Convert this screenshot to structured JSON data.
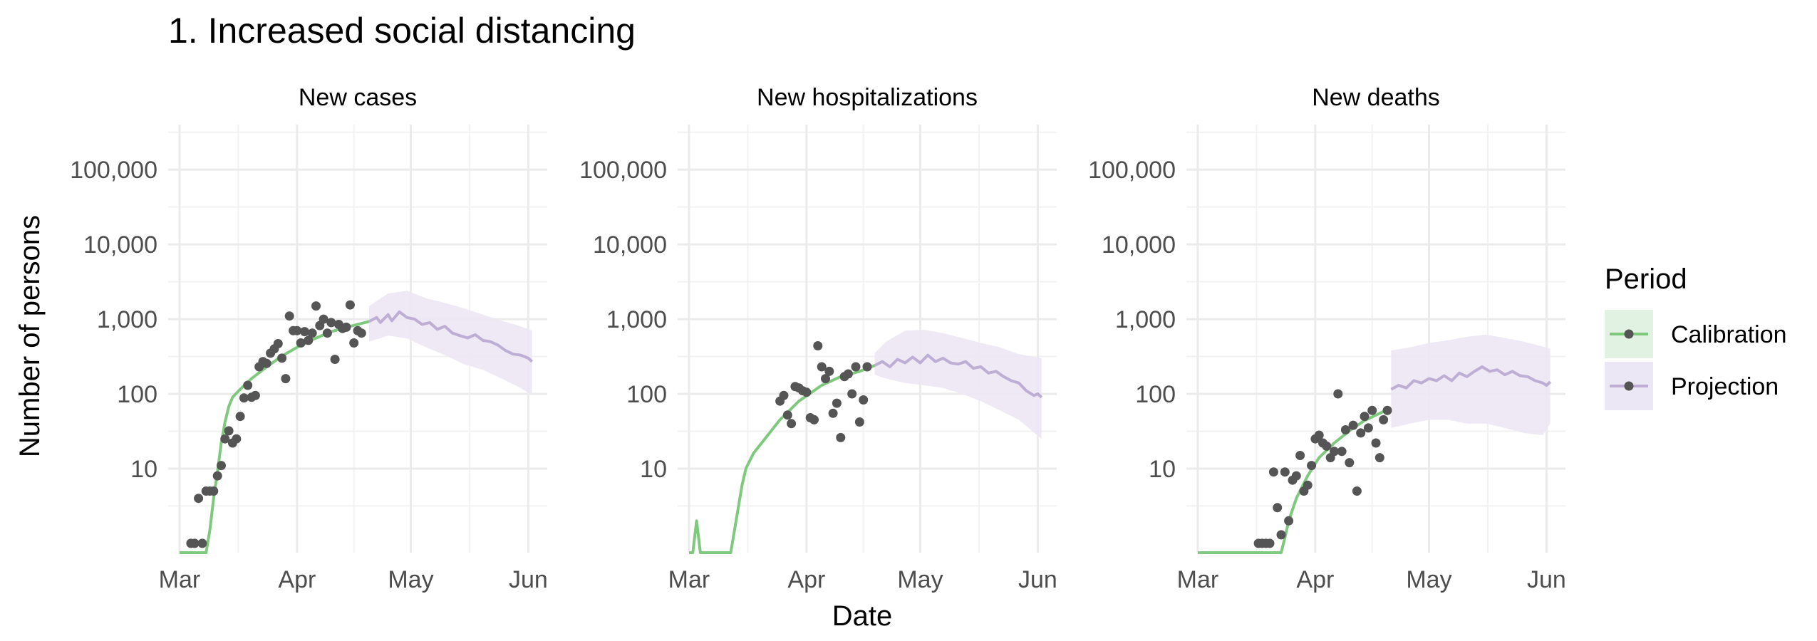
{
  "chart_data": {
    "type": "line",
    "title": "1. Increased social distancing",
    "xlabel": "Date",
    "ylabel": "Number of persons",
    "y_scale": "log",
    "y_ticks": [
      10,
      100,
      1000,
      10000,
      100000
    ],
    "y_tick_labels": [
      "10",
      "100",
      "1,000",
      "10,000",
      "100,000"
    ],
    "x_ticks": [
      "2020-03-01",
      "2020-04-01",
      "2020-05-01",
      "2020-06-01"
    ],
    "x_tick_labels": [
      "Mar",
      "Apr",
      "May",
      "Jun"
    ],
    "xlim": [
      "2020-02-27",
      "2020-06-06"
    ],
    "ylim": [
      0.75,
      400000
    ],
    "grid": true,
    "legend": {
      "title": "Period",
      "position": "right",
      "entries": [
        {
          "label": "Calibration",
          "color": "#7fc97f",
          "fill": "#e2f2e2"
        },
        {
          "label": "Projection",
          "color": "#beaed4",
          "fill": "#ece7f4"
        }
      ]
    },
    "colors": {
      "calibration": "#7fc97f",
      "projection": "#beaed4",
      "observed": "#555555"
    },
    "panels": [
      {
        "title": "New cases",
        "observed": [
          [
            "2020-03-04",
            1
          ],
          [
            "2020-03-05",
            1
          ],
          [
            "2020-03-06",
            4
          ],
          [
            "2020-03-07",
            1
          ],
          [
            "2020-03-08",
            5
          ],
          [
            "2020-03-09",
            5
          ],
          [
            "2020-03-10",
            5
          ],
          [
            "2020-03-11",
            8
          ],
          [
            "2020-03-12",
            11
          ],
          [
            "2020-03-13",
            25
          ],
          [
            "2020-03-14",
            32
          ],
          [
            "2020-03-15",
            22
          ],
          [
            "2020-03-16",
            25
          ],
          [
            "2020-03-17",
            50
          ],
          [
            "2020-03-18",
            88
          ],
          [
            "2020-03-19",
            130
          ],
          [
            "2020-03-20",
            90
          ],
          [
            "2020-03-21",
            95
          ],
          [
            "2020-03-22",
            230
          ],
          [
            "2020-03-23",
            270
          ],
          [
            "2020-03-24",
            255
          ],
          [
            "2020-03-25",
            350
          ],
          [
            "2020-03-26",
            400
          ],
          [
            "2020-03-27",
            470
          ],
          [
            "2020-03-28",
            300
          ],
          [
            "2020-03-29",
            160
          ],
          [
            "2020-03-30",
            1100
          ],
          [
            "2020-03-31",
            700
          ],
          [
            "2020-04-01",
            700
          ],
          [
            "2020-04-02",
            480
          ],
          [
            "2020-04-03",
            680
          ],
          [
            "2020-04-04",
            520
          ],
          [
            "2020-04-05",
            650
          ],
          [
            "2020-04-06",
            1500
          ],
          [
            "2020-04-07",
            820
          ],
          [
            "2020-04-08",
            1000
          ],
          [
            "2020-04-09",
            650
          ],
          [
            "2020-04-10",
            900
          ],
          [
            "2020-04-11",
            290
          ],
          [
            "2020-04-12",
            850
          ],
          [
            "2020-04-13",
            750
          ],
          [
            "2020-04-14",
            780
          ],
          [
            "2020-04-15",
            1550
          ],
          [
            "2020-04-16",
            480
          ],
          [
            "2020-04-17",
            700
          ],
          [
            "2020-04-18",
            650
          ]
        ],
        "calibration_line": [
          [
            "2020-03-01",
            0.5
          ],
          [
            "2020-03-08",
            0.5
          ],
          [
            "2020-03-09",
            1.5
          ],
          [
            "2020-03-10",
            4
          ],
          [
            "2020-03-11",
            9
          ],
          [
            "2020-03-12",
            22
          ],
          [
            "2020-03-13",
            42
          ],
          [
            "2020-03-14",
            68
          ],
          [
            "2020-03-15",
            90
          ],
          [
            "2020-03-17",
            115
          ],
          [
            "2020-03-20",
            160
          ],
          [
            "2020-03-24",
            230
          ],
          [
            "2020-03-28",
            320
          ],
          [
            "2020-04-01",
            420
          ],
          [
            "2020-04-05",
            530
          ],
          [
            "2020-04-10",
            680
          ],
          [
            "2020-04-15",
            800
          ],
          [
            "2020-04-20",
            930
          ]
        ],
        "projection_line": [
          [
            "2020-04-20",
            930
          ],
          [
            "2020-04-22",
            1050
          ],
          [
            "2020-04-23",
            900
          ],
          [
            "2020-04-25",
            1150
          ],
          [
            "2020-04-26",
            950
          ],
          [
            "2020-04-28",
            1250
          ],
          [
            "2020-04-30",
            1050
          ],
          [
            "2020-05-02",
            1000
          ],
          [
            "2020-05-04",
            850
          ],
          [
            "2020-05-06",
            900
          ],
          [
            "2020-05-08",
            730
          ],
          [
            "2020-05-10",
            800
          ],
          [
            "2020-05-12",
            650
          ],
          [
            "2020-05-14",
            600
          ],
          [
            "2020-05-16",
            560
          ],
          [
            "2020-05-18",
            620
          ],
          [
            "2020-05-20",
            520
          ],
          [
            "2020-05-22",
            500
          ],
          [
            "2020-05-24",
            450
          ],
          [
            "2020-05-26",
            380
          ],
          [
            "2020-05-28",
            340
          ],
          [
            "2020-05-30",
            330
          ],
          [
            "2020-06-01",
            300
          ],
          [
            "2020-06-02",
            270
          ]
        ],
        "projection_band": [
          [
            "2020-04-20",
            500,
            1500
          ],
          [
            "2020-04-25",
            600,
            2200
          ],
          [
            "2020-04-30",
            550,
            2400
          ],
          [
            "2020-05-05",
            420,
            1900
          ],
          [
            "2020-05-10",
            330,
            1650
          ],
          [
            "2020-05-15",
            250,
            1400
          ],
          [
            "2020-05-20",
            210,
            1150
          ],
          [
            "2020-05-25",
            160,
            950
          ],
          [
            "2020-05-30",
            120,
            800
          ],
          [
            "2020-06-02",
            95,
            700
          ]
        ]
      },
      {
        "title": "New hospitalizations",
        "observed": [
          [
            "2020-03-25",
            80
          ],
          [
            "2020-03-26",
            95
          ],
          [
            "2020-03-27",
            52
          ],
          [
            "2020-03-28",
            40
          ],
          [
            "2020-03-29",
            125
          ],
          [
            "2020-03-30",
            120
          ],
          [
            "2020-03-31",
            110
          ],
          [
            "2020-04-01",
            105
          ],
          [
            "2020-04-02",
            48
          ],
          [
            "2020-04-03",
            45
          ],
          [
            "2020-04-04",
            440
          ],
          [
            "2020-04-05",
            230
          ],
          [
            "2020-04-06",
            160
          ],
          [
            "2020-04-07",
            200
          ],
          [
            "2020-04-08",
            55
          ],
          [
            "2020-04-09",
            75
          ],
          [
            "2020-04-10",
            26
          ],
          [
            "2020-04-11",
            170
          ],
          [
            "2020-04-12",
            185
          ],
          [
            "2020-04-13",
            100
          ],
          [
            "2020-04-14",
            230
          ],
          [
            "2020-04-15",
            42
          ],
          [
            "2020-04-16",
            83
          ],
          [
            "2020-04-17",
            230
          ]
        ],
        "calibration_line": [
          [
            "2020-03-01",
            0.5
          ],
          [
            "2020-03-02",
            0.5
          ],
          [
            "2020-03-03",
            2
          ],
          [
            "2020-03-04",
            0.5
          ],
          [
            "2020-03-12",
            0.5
          ],
          [
            "2020-03-13",
            1.5
          ],
          [
            "2020-03-14",
            3
          ],
          [
            "2020-03-15",
            6
          ],
          [
            "2020-03-16",
            10
          ],
          [
            "2020-03-18",
            16
          ],
          [
            "2020-03-21",
            25
          ],
          [
            "2020-03-25",
            45
          ],
          [
            "2020-03-30",
            80
          ],
          [
            "2020-04-05",
            130
          ],
          [
            "2020-04-10",
            170
          ],
          [
            "2020-04-15",
            200
          ],
          [
            "2020-04-19",
            240
          ]
        ],
        "projection_line": [
          [
            "2020-04-19",
            240
          ],
          [
            "2020-04-21",
            270
          ],
          [
            "2020-04-23",
            230
          ],
          [
            "2020-04-25",
            290
          ],
          [
            "2020-04-27",
            260
          ],
          [
            "2020-04-29",
            310
          ],
          [
            "2020-05-01",
            260
          ],
          [
            "2020-05-03",
            330
          ],
          [
            "2020-05-05",
            270
          ],
          [
            "2020-05-07",
            300
          ],
          [
            "2020-05-09",
            260
          ],
          [
            "2020-05-11",
            250
          ],
          [
            "2020-05-13",
            270
          ],
          [
            "2020-05-15",
            220
          ],
          [
            "2020-05-17",
            230
          ],
          [
            "2020-05-19",
            190
          ],
          [
            "2020-05-21",
            200
          ],
          [
            "2020-05-23",
            170
          ],
          [
            "2020-05-25",
            150
          ],
          [
            "2020-05-27",
            140
          ],
          [
            "2020-05-29",
            110
          ],
          [
            "2020-05-31",
            95
          ],
          [
            "2020-06-01",
            100
          ],
          [
            "2020-06-02",
            90
          ]
        ],
        "projection_band": [
          [
            "2020-04-19",
            180,
            350
          ],
          [
            "2020-04-22",
            160,
            500
          ],
          [
            "2020-04-27",
            140,
            700
          ],
          [
            "2020-05-02",
            130,
            720
          ],
          [
            "2020-05-07",
            120,
            650
          ],
          [
            "2020-05-12",
            100,
            560
          ],
          [
            "2020-05-17",
            80,
            480
          ],
          [
            "2020-05-22",
            60,
            420
          ],
          [
            "2020-05-27",
            45,
            340
          ],
          [
            "2020-06-02",
            25,
            300
          ]
        ]
      },
      {
        "title": "New deaths",
        "observed": [
          [
            "2020-03-17",
            1
          ],
          [
            "2020-03-18",
            1
          ],
          [
            "2020-03-19",
            1
          ],
          [
            "2020-03-20",
            1
          ],
          [
            "2020-03-21",
            9
          ],
          [
            "2020-03-22",
            3
          ],
          [
            "2020-03-23",
            1.3
          ],
          [
            "2020-03-24",
            9
          ],
          [
            "2020-03-25",
            2
          ],
          [
            "2020-03-26",
            7
          ],
          [
            "2020-03-27",
            8
          ],
          [
            "2020-03-28",
            15
          ],
          [
            "2020-03-29",
            5
          ],
          [
            "2020-03-30",
            6
          ],
          [
            "2020-03-31",
            11
          ],
          [
            "2020-04-01",
            25
          ],
          [
            "2020-04-02",
            28
          ],
          [
            "2020-04-03",
            22
          ],
          [
            "2020-04-04",
            20
          ],
          [
            "2020-04-05",
            14
          ],
          [
            "2020-04-06",
            17
          ],
          [
            "2020-04-07",
            100
          ],
          [
            "2020-04-08",
            17
          ],
          [
            "2020-04-09",
            33
          ],
          [
            "2020-04-10",
            12
          ],
          [
            "2020-04-11",
            38
          ],
          [
            "2020-04-12",
            5
          ],
          [
            "2020-04-13",
            30
          ],
          [
            "2020-04-14",
            50
          ],
          [
            "2020-04-15",
            35
          ],
          [
            "2020-04-16",
            60
          ],
          [
            "2020-04-17",
            22
          ],
          [
            "2020-04-18",
            14
          ],
          [
            "2020-04-19",
            45
          ],
          [
            "2020-04-20",
            60
          ]
        ],
        "calibration_line": [
          [
            "2020-03-01",
            0.5
          ],
          [
            "2020-03-23",
            0.5
          ],
          [
            "2020-03-24",
            1.2
          ],
          [
            "2020-03-25",
            2
          ],
          [
            "2020-03-27",
            4
          ],
          [
            "2020-03-30",
            8
          ],
          [
            "2020-04-02",
            14
          ],
          [
            "2020-04-06",
            22
          ],
          [
            "2020-04-10",
            32
          ],
          [
            "2020-04-14",
            44
          ],
          [
            "2020-04-18",
            55
          ],
          [
            "2020-04-21",
            65
          ]
        ],
        "projection_line": [
          [
            "2020-04-21",
            115
          ],
          [
            "2020-04-23",
            130
          ],
          [
            "2020-04-25",
            120
          ],
          [
            "2020-04-27",
            150
          ],
          [
            "2020-04-29",
            140
          ],
          [
            "2020-05-01",
            160
          ],
          [
            "2020-05-03",
            150
          ],
          [
            "2020-05-05",
            175
          ],
          [
            "2020-05-07",
            150
          ],
          [
            "2020-05-09",
            190
          ],
          [
            "2020-05-11",
            170
          ],
          [
            "2020-05-13",
            200
          ],
          [
            "2020-05-15",
            230
          ],
          [
            "2020-05-17",
            200
          ],
          [
            "2020-05-19",
            210
          ],
          [
            "2020-05-21",
            180
          ],
          [
            "2020-05-23",
            200
          ],
          [
            "2020-05-25",
            175
          ],
          [
            "2020-05-27",
            170
          ],
          [
            "2020-05-29",
            150
          ],
          [
            "2020-05-31",
            140
          ],
          [
            "2020-06-01",
            130
          ],
          [
            "2020-06-02",
            145
          ]
        ],
        "projection_band": [
          [
            "2020-04-21",
            35,
            380
          ],
          [
            "2020-04-26",
            40,
            420
          ],
          [
            "2020-05-01",
            45,
            480
          ],
          [
            "2020-05-06",
            45,
            520
          ],
          [
            "2020-05-11",
            40,
            580
          ],
          [
            "2020-05-16",
            40,
            620
          ],
          [
            "2020-05-21",
            35,
            560
          ],
          [
            "2020-05-26",
            30,
            500
          ],
          [
            "2020-05-31",
            28,
            430
          ],
          [
            "2020-06-02",
            40,
            400
          ]
        ]
      }
    ]
  }
}
